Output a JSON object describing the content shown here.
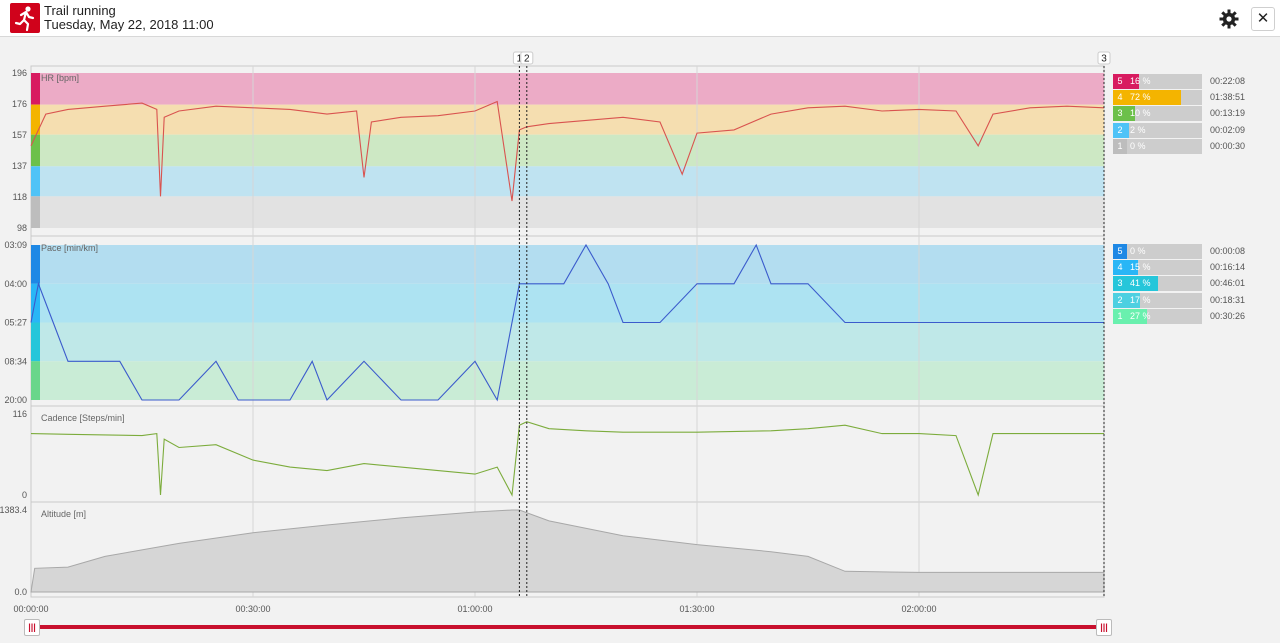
{
  "activity": {
    "title": "Trail running",
    "datetime": "Tuesday, May 22, 2018 11:00"
  },
  "icons": {
    "logo": "running-person-icon",
    "settings": "gear-icon",
    "close": "close-icon"
  },
  "close_label": "✕",
  "colors": {
    "brand": "#d0021b",
    "hr_line": "#d9534f",
    "pace_line": "#3b5bcc",
    "cadence_line": "#7cac3c",
    "altitude_fill": "#d6d6d6"
  },
  "markers": [
    "1",
    "2",
    "3"
  ],
  "hr_zones": [
    {
      "zone": "5",
      "percent": "16 %",
      "time": "00:22:08",
      "color": "#d81b60",
      "fill": 0.16
    },
    {
      "zone": "4",
      "percent": "72 %",
      "time": "01:38:51",
      "color": "#f4b400",
      "fill": 0.72
    },
    {
      "zone": "3",
      "percent": "10 %",
      "time": "00:13:19",
      "color": "#6cc04a",
      "fill": 0.1
    },
    {
      "zone": "2",
      "percent": "2 %",
      "time": "00:02:09",
      "color": "#4fc3f7",
      "fill": 0.02
    },
    {
      "zone": "1",
      "percent": "0 %",
      "time": "00:00:30",
      "color": "#bdbdbd",
      "fill": 0.0
    }
  ],
  "pace_zones": [
    {
      "zone": "5",
      "percent": "0 %",
      "time": "00:00:08",
      "color": "#1e88e5",
      "fill": 0.0
    },
    {
      "zone": "4",
      "percent": "15 %",
      "time": "00:16:14",
      "color": "#29b6f6",
      "fill": 0.15
    },
    {
      "zone": "3",
      "percent": "41 %",
      "time": "00:46:01",
      "color": "#26c6da",
      "fill": 0.41
    },
    {
      "zone": "2",
      "percent": "17 %",
      "time": "00:18:31",
      "color": "#4dd0e1",
      "fill": 0.17
    },
    {
      "zone": "1",
      "percent": "27 %",
      "time": "00:30:26",
      "color": "#69f0ae",
      "fill": 0.27
    }
  ],
  "chart_data": [
    {
      "type": "line",
      "title": "HR [bpm]",
      "yticks": [
        "196",
        "176",
        "157",
        "137",
        "118",
        "98"
      ],
      "ylim": [
        98,
        196
      ],
      "zone_bands": [
        {
          "from": 176,
          "to": 196,
          "color": "#ecabc6"
        },
        {
          "from": 157,
          "to": 176,
          "color": "#f5deb0"
        },
        {
          "from": 137,
          "to": 157,
          "color": "#cde8c4"
        },
        {
          "from": 118,
          "to": 137,
          "color": "#bfe3f1"
        },
        {
          "from": 98,
          "to": 118,
          "color": "#e2e2e2"
        }
      ],
      "x_minutes": [
        0,
        2,
        5,
        10,
        15,
        17,
        17.5,
        18,
        20,
        25,
        30,
        35,
        40,
        44,
        45,
        46,
        50,
        55,
        60,
        63,
        65,
        66,
        67,
        70,
        75,
        80,
        85,
        88,
        90,
        95,
        100,
        105,
        110,
        115,
        120,
        125,
        128,
        130,
        135,
        140,
        145
      ],
      "values": [
        150,
        170,
        173,
        175,
        177,
        173,
        118,
        168,
        172,
        175,
        174,
        173,
        170,
        172,
        130,
        165,
        168,
        169,
        172,
        178,
        115,
        160,
        162,
        164,
        166,
        168,
        165,
        132,
        158,
        160,
        170,
        174,
        175,
        172,
        173,
        172,
        150,
        170,
        174,
        175,
        174
      ]
    },
    {
      "type": "line",
      "title": "Pace [min/km]",
      "yticks": [
        "03:09",
        "04:00",
        "05:27",
        "08:34",
        "20:00"
      ],
      "zone_bands": [
        {
          "zone": "5-4",
          "color": "#b3ddf0"
        },
        {
          "zone": "3",
          "color": "#ade3f2"
        },
        {
          "zone": "2",
          "color": "#bfe8e8"
        },
        {
          "zone": "1",
          "color": "#c9ecd6"
        }
      ],
      "x_minutes": [
        0,
        1,
        3,
        5,
        8,
        12,
        15,
        18,
        20,
        25,
        28,
        30,
        35,
        38,
        40,
        45,
        50,
        55,
        60,
        63,
        66,
        68,
        70,
        72,
        75,
        78,
        80,
        82,
        85,
        90,
        95,
        98,
        100,
        105,
        110,
        115,
        120,
        123,
        125,
        130,
        135,
        140,
        145
      ],
      "values": [
        "05:27",
        "04:00",
        "05:27",
        "08:34",
        "08:34",
        "08:34",
        "20:00",
        "20:00",
        "20:00",
        "08:34",
        "20:00",
        "20:00",
        "20:00",
        "08:34",
        "20:00",
        "08:34",
        "20:00",
        "20:00",
        "08:34",
        "20:00",
        "04:00",
        "04:00",
        "04:00",
        "04:00",
        "03:09",
        "04:00",
        "05:27",
        "05:27",
        "05:27",
        "04:00",
        "04:00",
        "03:09",
        "04:00",
        "04:00",
        "05:27",
        "05:27",
        "05:27",
        "05:27",
        "05:27",
        "05:27",
        "05:27",
        "05:27",
        "05:27"
      ]
    },
    {
      "type": "line",
      "title": "Cadence [Steps/min]",
      "yticks": [
        "116",
        "0"
      ],
      "ylim": [
        0,
        116
      ],
      "x_minutes": [
        0,
        5,
        10,
        15,
        17,
        17.5,
        18,
        20,
        25,
        30,
        35,
        40,
        45,
        50,
        55,
        60,
        63,
        65,
        66,
        67,
        70,
        75,
        80,
        90,
        100,
        105,
        110,
        115,
        120,
        125,
        128,
        130,
        135,
        140,
        145
      ],
      "values": [
        88,
        87,
        86,
        85,
        88,
        0,
        80,
        68,
        72,
        50,
        40,
        35,
        45,
        40,
        35,
        30,
        40,
        0,
        100,
        105,
        95,
        92,
        90,
        90,
        92,
        95,
        100,
        88,
        88,
        85,
        0,
        88,
        88,
        88,
        88
      ]
    },
    {
      "type": "area",
      "title": "Altitude [m]",
      "yticks": [
        "1383.4",
        "0.0"
      ],
      "ylim": [
        0,
        1383.4
      ],
      "x_minutes": [
        0,
        0.5,
        5,
        10,
        20,
        30,
        40,
        50,
        60,
        65,
        66,
        70,
        80,
        90,
        100,
        105,
        110,
        120,
        130,
        140,
        145
      ],
      "values": [
        0,
        400,
        420,
        600,
        820,
        1000,
        1130,
        1250,
        1350,
        1383.4,
        1383.4,
        1200,
        950,
        800,
        680,
        600,
        350,
        330,
        330,
        330,
        330
      ]
    }
  ],
  "x_axis": {
    "ticks": [
      "00:00:00",
      "00:30:00",
      "01:00:00",
      "01:30:00",
      "02:00:00"
    ],
    "tick_minutes": [
      0,
      30,
      60,
      90,
      120
    ],
    "range_minutes": [
      0,
      145
    ]
  },
  "marker_positions_minutes": [
    66,
    67,
    145
  ],
  "slider": {
    "start_label": "|||",
    "end_label": "|||"
  }
}
